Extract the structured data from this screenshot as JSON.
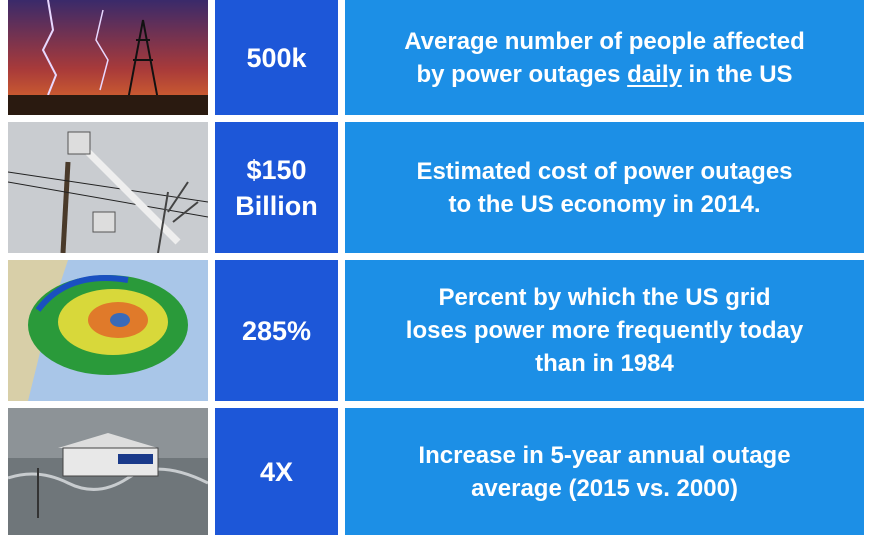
{
  "rows": [
    {
      "stat": [
        "500k"
      ],
      "description": [
        "Average number of people affected",
        "by power outages",
        "daily",
        "in the US"
      ]
    },
    {
      "stat": [
        "$150",
        "Billion"
      ],
      "description": [
        "Estimated cost of power outages",
        "to the US economy in 2014."
      ]
    },
    {
      "stat": [
        "285%"
      ],
      "description": [
        "Percent by which the US grid",
        "loses power more frequently today",
        "than in 1984"
      ]
    },
    {
      "stat": [
        "4X"
      ],
      "description": [
        "Increase in 5-year annual outage",
        "average (2015 vs. 2000)"
      ]
    }
  ]
}
